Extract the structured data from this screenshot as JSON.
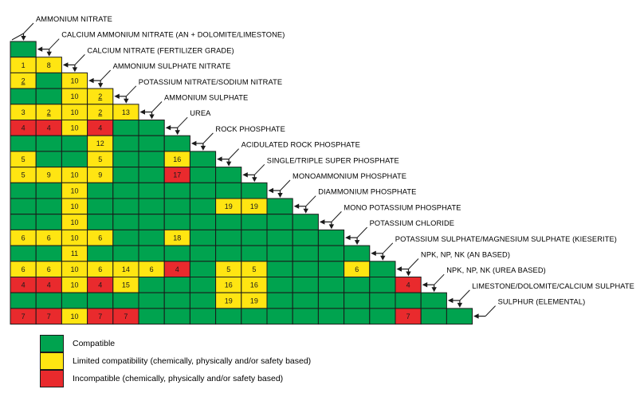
{
  "chart_data": {
    "type": "heatmap",
    "structure": "lower-triangular compatibility matrix; row i compares fertilizer i+1 with fertilizers 1..i; numbers in cells are footnote codes",
    "legend_position": "bottom-left",
    "fertilizers": [
      "AMMONIUM NITRATE",
      "CALCIUM AMMONIUM NITRATE (AN + DOLOMITE/LIMESTONE)",
      "CALCIUM NITRATE (FERTILIZER GRADE)",
      "AMMONIUM SULPHATE NITRATE",
      "POTASSIUM NITRATE/SODIUM NITRATE",
      "AMMONIUM SULPHATE",
      "UREA",
      "ROCK PHOSPHATE",
      "ACIDULATED ROCK PHOSPHATE",
      "SINGLE/TRIPLE SUPER PHOSPHATE",
      "MONOAMMONIUM PHOSPHATE",
      "DIAMMONIUM PHOSPHATE",
      "MONO POTASSIUM PHOSPHATE",
      "POTASSIUM CHLORIDE",
      "POTASSIUM SULPHATE/MAGNESIUM SULPHATE (KIESERITE)",
      "NPK, NP, NK (AN BASED)",
      "NPK, NP, NK (UREA BASED)",
      "LIMESTONE/DOLOMITE/CALCIUM SULPHATE",
      "SULPHUR (ELEMENTAL)"
    ],
    "cell_status_codes": {
      "g": "compatible",
      "y": "limited",
      "r": "incompatible"
    },
    "underlined_numbers": [
      "2"
    ],
    "rows": [
      [
        "g"
      ],
      [
        "y1",
        "y8"
      ],
      [
        "y2",
        "g",
        "y10"
      ],
      [
        "g",
        "g",
        "y10",
        "y2"
      ],
      [
        "y3",
        "y2",
        "y10",
        "y2",
        "y13"
      ],
      [
        "r4",
        "r4",
        "y10",
        "r4",
        "g",
        "g"
      ],
      [
        "g",
        "g",
        "g",
        "y12",
        "g",
        "g",
        "g"
      ],
      [
        "y5",
        "g",
        "g",
        "y5",
        "g",
        "g",
        "y16",
        "g"
      ],
      [
        "y5",
        "y9",
        "y10",
        "y9",
        "g",
        "g",
        "r17",
        "g",
        "g"
      ],
      [
        "g",
        "g",
        "y10",
        "g",
        "g",
        "g",
        "g",
        "g",
        "g",
        "g"
      ],
      [
        "g",
        "g",
        "y10",
        "g",
        "g",
        "g",
        "g",
        "g",
        "y19",
        "y19",
        "g"
      ],
      [
        "g",
        "g",
        "y10",
        "g",
        "g",
        "g",
        "g",
        "g",
        "g",
        "g",
        "g",
        "g"
      ],
      [
        "y6",
        "y6",
        "y10",
        "y6",
        "g",
        "g",
        "y18",
        "g",
        "g",
        "g",
        "g",
        "g",
        "g"
      ],
      [
        "g",
        "g",
        "y11",
        "g",
        "g",
        "g",
        "g",
        "g",
        "g",
        "g",
        "g",
        "g",
        "g",
        "g"
      ],
      [
        "y6",
        "y6",
        "y10",
        "y6",
        "y14",
        "y6",
        "r4",
        "g",
        "y5",
        "y5",
        "g",
        "g",
        "g",
        "y6",
        "g"
      ],
      [
        "r4",
        "r4",
        "y10",
        "r4",
        "y15",
        "g",
        "g",
        "g",
        "y16",
        "y16",
        "g",
        "g",
        "g",
        "g",
        "g",
        "r4"
      ],
      [
        "g",
        "g",
        "g",
        "g",
        "g",
        "g",
        "g",
        "g",
        "y19",
        "y19",
        "g",
        "g",
        "g",
        "g",
        "g",
        "g",
        "g"
      ],
      [
        "r7",
        "r7",
        "y10",
        "r7",
        "r7",
        "g",
        "g",
        "g",
        "g",
        "g",
        "g",
        "g",
        "g",
        "g",
        "g",
        "r7",
        "g",
        "g"
      ]
    ]
  },
  "legend": {
    "items": [
      {
        "status": "compatible",
        "color": "#00A34F",
        "label": "Compatible"
      },
      {
        "status": "limited",
        "color": "#FFE512",
        "label": "Limited compatibility (chemically, physically and/or safety based)"
      },
      {
        "status": "incompatible",
        "color": "#E92A2D",
        "label": "Incompatible (chemically, physically and/or safety based)"
      }
    ]
  },
  "colors": {
    "compatible": "#00A34F",
    "limited": "#FFE512",
    "incompatible": "#E92A2D",
    "grid_line": "#1a1a1a",
    "number_text": "#1a1a1a",
    "label_text": "#000000"
  }
}
